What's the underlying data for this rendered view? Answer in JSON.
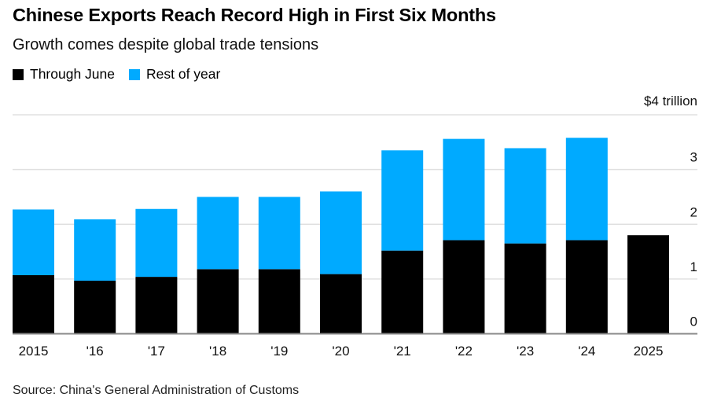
{
  "title": "Chinese Exports Reach Record High in First Six Months",
  "subtitle": "Growth comes despite global trade tensions",
  "source": "Source: China's General Administration of Customs",
  "colors": {
    "through_june": "#000000",
    "rest_of_year": "#00aaff",
    "grid": "#e0e0e0",
    "axis": "#888888"
  },
  "legend": [
    {
      "label": "Through June",
      "color": "#000000"
    },
    {
      "label": "Rest of year",
      "color": "#00aaff"
    }
  ],
  "chart_data": {
    "type": "bar",
    "stacked": true,
    "title": "Chinese Exports Reach Record High in First Six Months",
    "subtitle": "Growth comes despite global trade tensions",
    "categories": [
      "2015",
      "'16",
      "'17",
      "'18",
      "'19",
      "'20",
      "'21",
      "'22",
      "'23",
      "'24",
      "2025"
    ],
    "series": [
      {
        "name": "Through June",
        "values": [
          1.07,
          0.97,
          1.04,
          1.18,
          1.18,
          1.09,
          1.52,
          1.71,
          1.65,
          1.71,
          1.8
        ]
      },
      {
        "name": "Rest of year",
        "values": [
          1.2,
          1.12,
          1.24,
          1.32,
          1.32,
          1.51,
          1.83,
          1.85,
          1.74,
          1.87,
          0
        ]
      }
    ],
    "totals": [
      2.27,
      2.09,
      2.28,
      2.5,
      2.5,
      2.6,
      3.35,
      3.56,
      3.39,
      3.58,
      1.8
    ],
    "y_ticks": [
      "0",
      "1",
      "2",
      "3",
      "$4 trillion"
    ],
    "y_tick_values": [
      0,
      1,
      2,
      3,
      4
    ],
    "ylim": [
      0,
      4
    ],
    "ylabel": "$ trillion",
    "xlabel": "",
    "grid": true,
    "y_axis_position": "right",
    "legend_position": "top-left"
  }
}
